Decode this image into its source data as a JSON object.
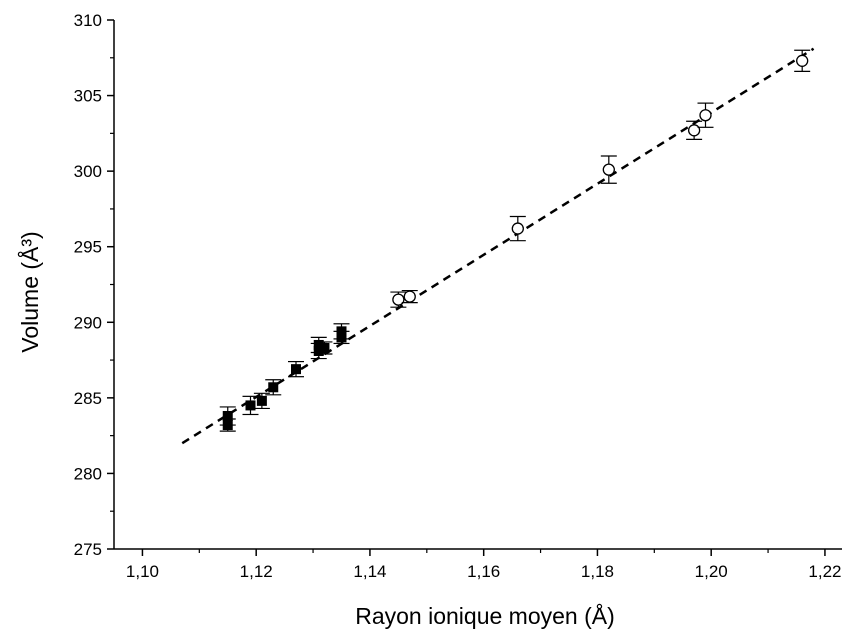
{
  "chart_data": {
    "type": "scatter",
    "title": "",
    "xlabel": "Rayon ionique moyen (Å)",
    "ylabel": "Volume (Å³)",
    "xlim": [
      1.095,
      1.223
    ],
    "ylim": [
      275,
      310
    ],
    "x_ticks": [
      1.1,
      1.12,
      1.14,
      1.16,
      1.18,
      1.2,
      1.22
    ],
    "x_tick_labels": [
      "1,10",
      "1,12",
      "1,14",
      "1,16",
      "1,18",
      "1,20",
      "1,22"
    ],
    "y_ticks": [
      275,
      280,
      285,
      290,
      295,
      300,
      305,
      310
    ],
    "y_tick_labels": [
      "275",
      "280",
      "285",
      "290",
      "295",
      "300",
      "305",
      "310"
    ],
    "grid": false,
    "legend": "none",
    "series": [
      {
        "marker": "filled-square",
        "color": "#000000",
        "points": [
          {
            "x": 1.115,
            "y": 283.2,
            "err": 0.4
          },
          {
            "x": 1.115,
            "y": 283.8,
            "err": 0.6
          },
          {
            "x": 1.119,
            "y": 284.5,
            "err": 0.6
          },
          {
            "x": 1.121,
            "y": 284.8,
            "err": 0.5
          },
          {
            "x": 1.123,
            "y": 285.7,
            "err": 0.5
          },
          {
            "x": 1.127,
            "y": 286.9,
            "err": 0.5
          },
          {
            "x": 1.131,
            "y": 288.1,
            "err": 0.5
          },
          {
            "x": 1.131,
            "y": 288.5,
            "err": 0.5
          },
          {
            "x": 1.132,
            "y": 288.3,
            "err": 0.4
          },
          {
            "x": 1.135,
            "y": 289.0,
            "err": 0.4
          },
          {
            "x": 1.135,
            "y": 289.4,
            "err": 0.5
          }
        ]
      },
      {
        "marker": "open-circle",
        "color": "#000000",
        "points": [
          {
            "x": 1.145,
            "y": 291.5,
            "err": 0.5
          },
          {
            "x": 1.147,
            "y": 291.7,
            "err": 0.4
          },
          {
            "x": 1.166,
            "y": 296.2,
            "err": 0.8
          },
          {
            "x": 1.182,
            "y": 300.1,
            "err": 0.9
          },
          {
            "x": 1.197,
            "y": 302.7,
            "err": 0.6
          },
          {
            "x": 1.199,
            "y": 303.7,
            "err": 0.8
          },
          {
            "x": 1.216,
            "y": 307.3,
            "err": 0.7
          }
        ]
      }
    ],
    "fit_line": {
      "style": "dashed",
      "color": "#000000",
      "x": [
        1.107,
        1.218
      ],
      "y": [
        282.0,
        308.1
      ]
    }
  }
}
